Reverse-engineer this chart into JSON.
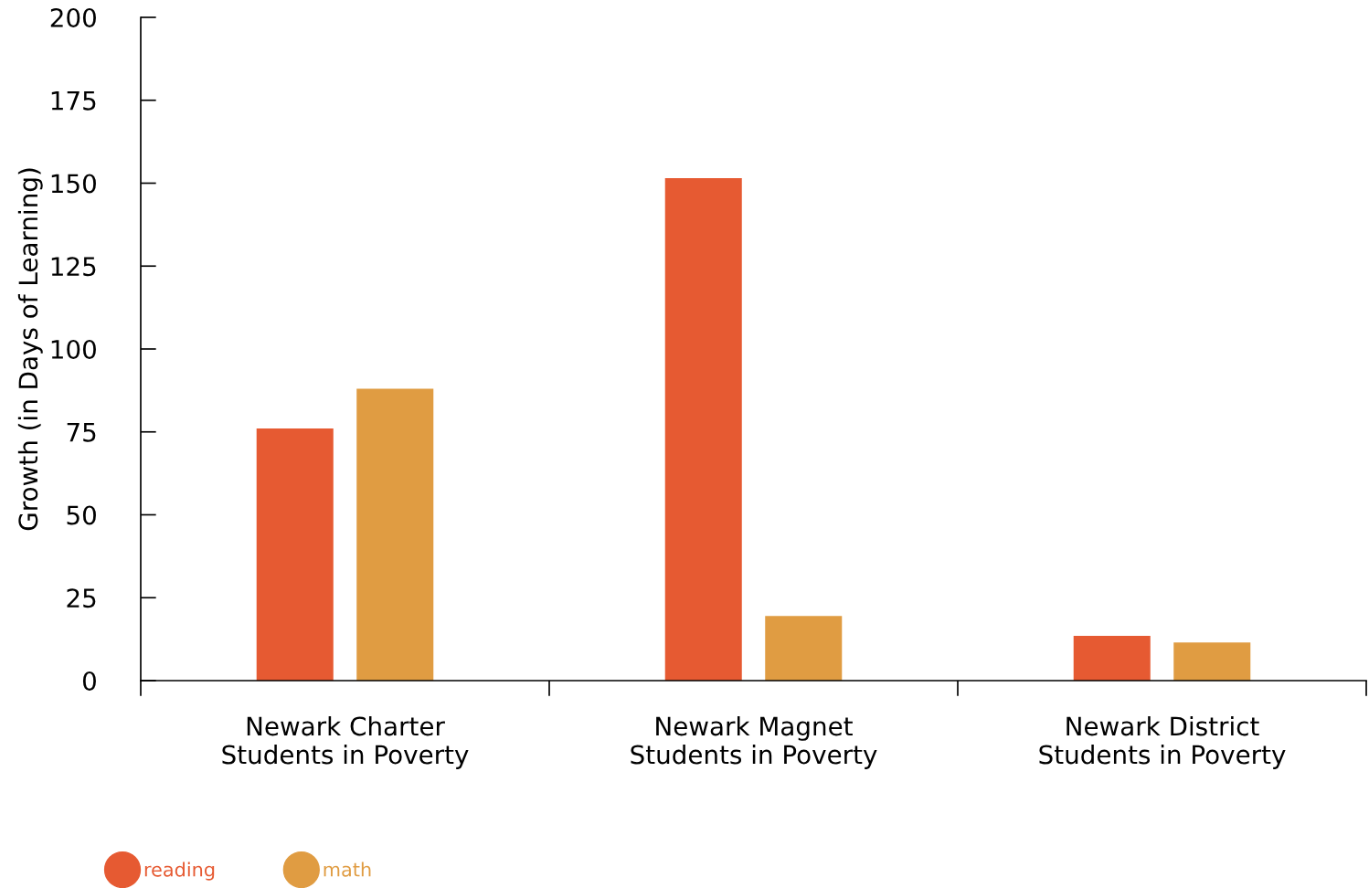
{
  "chart_data": {
    "type": "bar",
    "ylabel": "Growth (in Days of Learning)",
    "categories": [
      "Newark Charter\nStudents in Poverty",
      "Newark Magnet\nStudents in Poverty",
      "Newark District\nStudents in Poverty"
    ],
    "series": [
      {
        "name": "reading",
        "color": "#e65a32",
        "values": [
          76,
          151.5,
          13.5
        ]
      },
      {
        "name": "math",
        "color": "#e09c42",
        "values": [
          88,
          19.5,
          11.5
        ]
      }
    ],
    "ylim": [
      0,
      200
    ],
    "yticks": [
      0,
      25,
      50,
      75,
      100,
      125,
      150,
      175,
      200
    ],
    "grid": false,
    "legend": "bottom left",
    "marker": "circle"
  }
}
